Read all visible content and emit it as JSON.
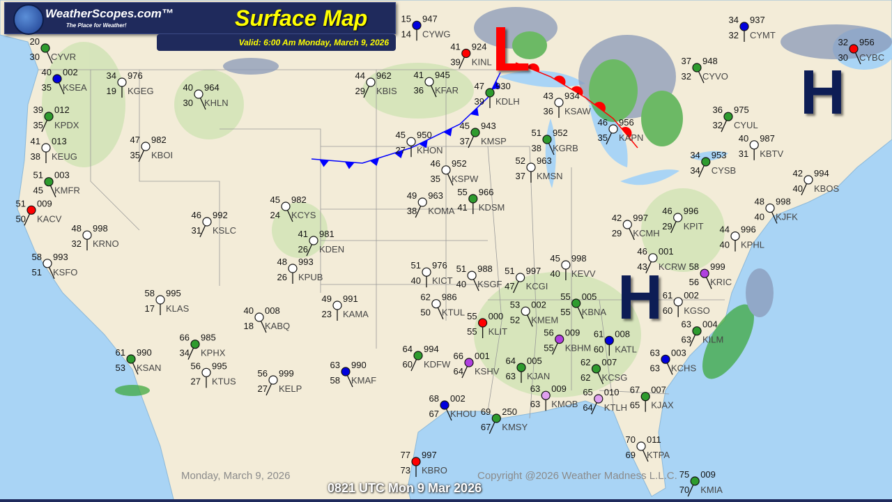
{
  "header": {
    "brand": "WeatherScopes.com™",
    "tagline": "The Place for Weather!",
    "title": "Surface Map",
    "valid": "Valid: 6:00 Am Monday, March 9, 2026"
  },
  "footer": {
    "date": "Monday, March 9, 2026",
    "copyright": "Copyright @2026 Weather Madness L.L.C.",
    "utc": "0821 UTC Mon 9 Mar 2026"
  },
  "pressure_centers": [
    {
      "type": "L",
      "color": "#ff0000"
    },
    {
      "type": "H",
      "color": "#0d1d55"
    },
    {
      "type": "H",
      "color": "#0d1d55"
    }
  ],
  "fronts": [
    {
      "type": "cold",
      "color": "#0000ff"
    },
    {
      "type": "warm",
      "color": "#ff0000"
    }
  ],
  "colors": {
    "land": "#f3ecd8",
    "water": "#a9d4f5",
    "forest": "#cfe3b4",
    "radar": "#3fa93f"
  },
  "stations": [
    {
      "id": "KINL",
      "t": "41",
      "td": "39",
      "p": "924",
      "fill": "#ff0000"
    },
    {
      "id": "KDLH",
      "t": "47",
      "td": "39",
      "p": "930",
      "fill": "#2e9b2e"
    },
    {
      "id": "KFAR",
      "t": "41",
      "td": "36",
      "p": "945",
      "fill": "#ffffff"
    },
    {
      "id": "KMSP",
      "t": "45",
      "td": "37",
      "p": "943",
      "fill": "#2e9b2e"
    },
    {
      "id": "KSAW",
      "t": "43",
      "td": "36",
      "p": "934",
      "fill": "#ffffff"
    },
    {
      "id": "KGRB",
      "t": "51",
      "td": "38",
      "p": "952",
      "fill": "#2e9b2e"
    },
    {
      "id": "KAPN",
      "t": "46",
      "td": "35",
      "p": "956",
      "fill": "#ffffff"
    },
    {
      "id": "KMSN",
      "t": "52",
      "td": "37",
      "p": "963",
      "fill": "#ffffff"
    },
    {
      "id": "KSPW",
      "t": "46",
      "td": "35",
      "p": "952",
      "fill": "#ffffff"
    },
    {
      "id": "KBIS",
      "t": "44",
      "td": "29",
      "p": "962",
      "fill": "#ffffff"
    },
    {
      "id": "KHON",
      "t": "45",
      "td": "27",
      "p": "950",
      "fill": "#ffffff"
    },
    {
      "id": "KSEA",
      "t": "40",
      "td": "35",
      "p": "002",
      "fill": "#0000dd"
    },
    {
      "id": "KPDX",
      "t": "39",
      "td": "35",
      "p": "012",
      "fill": "#2e9b2e"
    },
    {
      "id": "KEUG",
      "t": "41",
      "td": "38",
      "p": "013",
      "fill": "#ffffff"
    },
    {
      "id": "KMFR",
      "t": "51",
      "td": "45",
      "p": "003",
      "fill": "#2e9b2e"
    },
    {
      "id": "KACV",
      "t": "51",
      "td": "50",
      "p": "009",
      "fill": "#ff0000"
    },
    {
      "id": "KRNO",
      "t": "48",
      "td": "32",
      "p": "998",
      "fill": "#ffffff"
    },
    {
      "id": "KSFO",
      "t": "58",
      "td": "51",
      "p": "993",
      "fill": "#ffffff"
    },
    {
      "id": "KBOI",
      "t": "47",
      "td": "35",
      "p": "982",
      "fill": "#ffffff"
    },
    {
      "id": "KGEG",
      "t": "34",
      "td": "19",
      "p": "976",
      "fill": "#ffffff"
    },
    {
      "id": "KHLN",
      "t": "40",
      "td": "30",
      "p": "964",
      "fill": "#ffffff"
    },
    {
      "id": "KSLC",
      "t": "46",
      "td": "31",
      "p": "992",
      "fill": "#ffffff"
    },
    {
      "id": "KLAS",
      "t": "58",
      "td": "17",
      "p": "995",
      "fill": "#ffffff"
    },
    {
      "id": "KSAN",
      "t": "61",
      "td": "53",
      "p": "990",
      "fill": "#2e9b2e"
    },
    {
      "id": "KPHX",
      "t": "66",
      "td": "34",
      "p": "985",
      "fill": "#2e9b2e"
    },
    {
      "id": "KTUS",
      "t": "56",
      "td": "27",
      "p": "995",
      "fill": "#ffffff"
    },
    {
      "id": "KCYS",
      "t": "45",
      "td": "24",
      "p": "982",
      "fill": "#ffffff"
    },
    {
      "id": "KDEN",
      "t": "41",
      "td": "26",
      "p": "981",
      "fill": "#ffffff"
    },
    {
      "id": "KPUB",
      "t": "48",
      "td": "26",
      "p": "993",
      "fill": "#ffffff"
    },
    {
      "id": "KABQ",
      "t": "40",
      "td": "18",
      "p": "008",
      "fill": "#ffffff"
    },
    {
      "id": "KELP",
      "t": "56",
      "td": "27",
      "p": "999",
      "fill": "#ffffff"
    },
    {
      "id": "KAMA",
      "t": "49",
      "td": "23",
      "p": "991",
      "fill": "#ffffff"
    },
    {
      "id": "KMAF",
      "t": "63",
      "td": "58",
      "p": "990",
      "fill": "#0000dd"
    },
    {
      "id": "KDFW",
      "t": "64",
      "td": "60",
      "p": "994",
      "fill": "#2e9b2e"
    },
    {
      "id": "KICT",
      "t": "51",
      "td": "40",
      "p": "976",
      "fill": "#ffffff"
    },
    {
      "id": "KTUL",
      "t": "62",
      "td": "50",
      "p": "986",
      "fill": "#ffffff"
    },
    {
      "id": "KOMA",
      "t": "49",
      "td": "38",
      "p": "963",
      "fill": "#ffffff"
    },
    {
      "id": "KDSM",
      "t": "55",
      "td": "41",
      "p": "966",
      "fill": "#2e9b2e"
    },
    {
      "id": "KSGF",
      "t": "51",
      "td": "40",
      "p": "988",
      "fill": "#ffffff"
    },
    {
      "id": "KCGI",
      "t": "51",
      "td": "47",
      "p": "997",
      "fill": "#ffffff"
    },
    {
      "id": "KLIT",
      "t": "55",
      "td": "55",
      "p": "000",
      "fill": "#ff0000"
    },
    {
      "id": "KMEM",
      "t": "53",
      "td": "52",
      "p": "002",
      "fill": "#ffffff"
    },
    {
      "id": "KSHV",
      "t": "66",
      "td": "64",
      "p": "001",
      "fill": "#b040e0"
    },
    {
      "id": "KJAN",
      "t": "64",
      "td": "63",
      "p": "005",
      "fill": "#2e9b2e"
    },
    {
      "id": "KHOU",
      "t": "68",
      "td": "67",
      "p": "002",
      "fill": "#0000dd"
    },
    {
      "id": "KMSY",
      "t": "69",
      "td": "67",
      "p": "250",
      "fill": "#2e9b2e"
    },
    {
      "id": "KMOB",
      "t": "63",
      "td": "63",
      "p": "009",
      "fill": "#e0a0f0"
    },
    {
      "id": "KBNA",
      "t": "55",
      "td": "55",
      "p": "005",
      "fill": "#2e9b2e"
    },
    {
      "id": "KBHM",
      "t": "56",
      "td": "55",
      "p": "009",
      "fill": "#b040e0"
    },
    {
      "id": "KATL",
      "t": "61",
      "td": "60",
      "p": "008",
      "fill": "#0000dd"
    },
    {
      "id": "KCSG",
      "t": "62",
      "td": "62",
      "p": "007",
      "fill": "#2e9b2e"
    },
    {
      "id": "KTLH",
      "t": "65",
      "td": "64",
      "p": "010",
      "fill": "#e0a0f0"
    },
    {
      "id": "KJAX",
      "t": "67",
      "td": "65",
      "p": "007",
      "fill": "#2e9b2e"
    },
    {
      "id": "KCHS",
      "t": "63",
      "td": "63",
      "p": "003",
      "fill": "#0000dd"
    },
    {
      "id": "KILM",
      "t": "63",
      "td": "63",
      "p": "004",
      "fill": "#2e9b2e"
    },
    {
      "id": "KGSO",
      "t": "61",
      "td": "60",
      "p": "002",
      "fill": "#ffffff"
    },
    {
      "id": "KRIC",
      "t": "58",
      "td": "56",
      "p": "999",
      "fill": "#b040e0"
    },
    {
      "id": "KCRW",
      "t": "46",
      "td": "43",
      "p": "001",
      "fill": "#ffffff"
    },
    {
      "id": "KEVV",
      "t": "45",
      "td": "40",
      "p": "998",
      "fill": "#ffffff"
    },
    {
      "id": "KCMH",
      "t": "42",
      "td": "29",
      "p": "997",
      "fill": "#ffffff"
    },
    {
      "id": "KPIT",
      "t": "46",
      "td": "29",
      "p": "996",
      "fill": "#ffffff"
    },
    {
      "id": "KPHL",
      "t": "44",
      "td": "40",
      "p": "996",
      "fill": "#ffffff"
    },
    {
      "id": "KJFK",
      "t": "48",
      "td": "40",
      "p": "998",
      "fill": "#ffffff"
    },
    {
      "id": "KBOS",
      "t": "42",
      "td": "40",
      "p": "994",
      "fill": "#ffffff"
    },
    {
      "id": "KBTV",
      "t": "40",
      "td": "31",
      "p": "987",
      "fill": "#ffffff"
    },
    {
      "id": "KTPA",
      "t": "70",
      "td": "69",
      "p": "011",
      "fill": "#ffffff"
    },
    {
      "id": "KMIA",
      "t": "75",
      "td": "70",
      "p": "009",
      "fill": "#2e9b2e"
    },
    {
      "id": "KBRO",
      "t": "77",
      "td": "73",
      "p": "997",
      "fill": "#ff0000"
    },
    {
      "id": "CYVO",
      "t": "37",
      "td": "32",
      "p": "948",
      "fill": "#2e9b2e"
    },
    {
      "id": "CYUL",
      "t": "36",
      "td": "32",
      "p": "975",
      "fill": "#2e9b2e"
    },
    {
      "id": "CYMT",
      "t": "34",
      "td": "32",
      "p": "937",
      "fill": "#0000dd"
    },
    {
      "id": "CYBC",
      "t": "32",
      "td": "30",
      "p": "956",
      "fill": "#ff0000"
    },
    {
      "id": "CYSB",
      "t": "34",
      "td": "34",
      "p": "953",
      "fill": "#2e9b2e"
    },
    {
      "id": "CYWG",
      "t": "15",
      "td": "14",
      "p": "947",
      "fill": "#0000dd"
    },
    {
      "id": "CYVR",
      "t": "20",
      "td": "30",
      "p": "",
      "fill": "#2e9b2e"
    }
  ]
}
